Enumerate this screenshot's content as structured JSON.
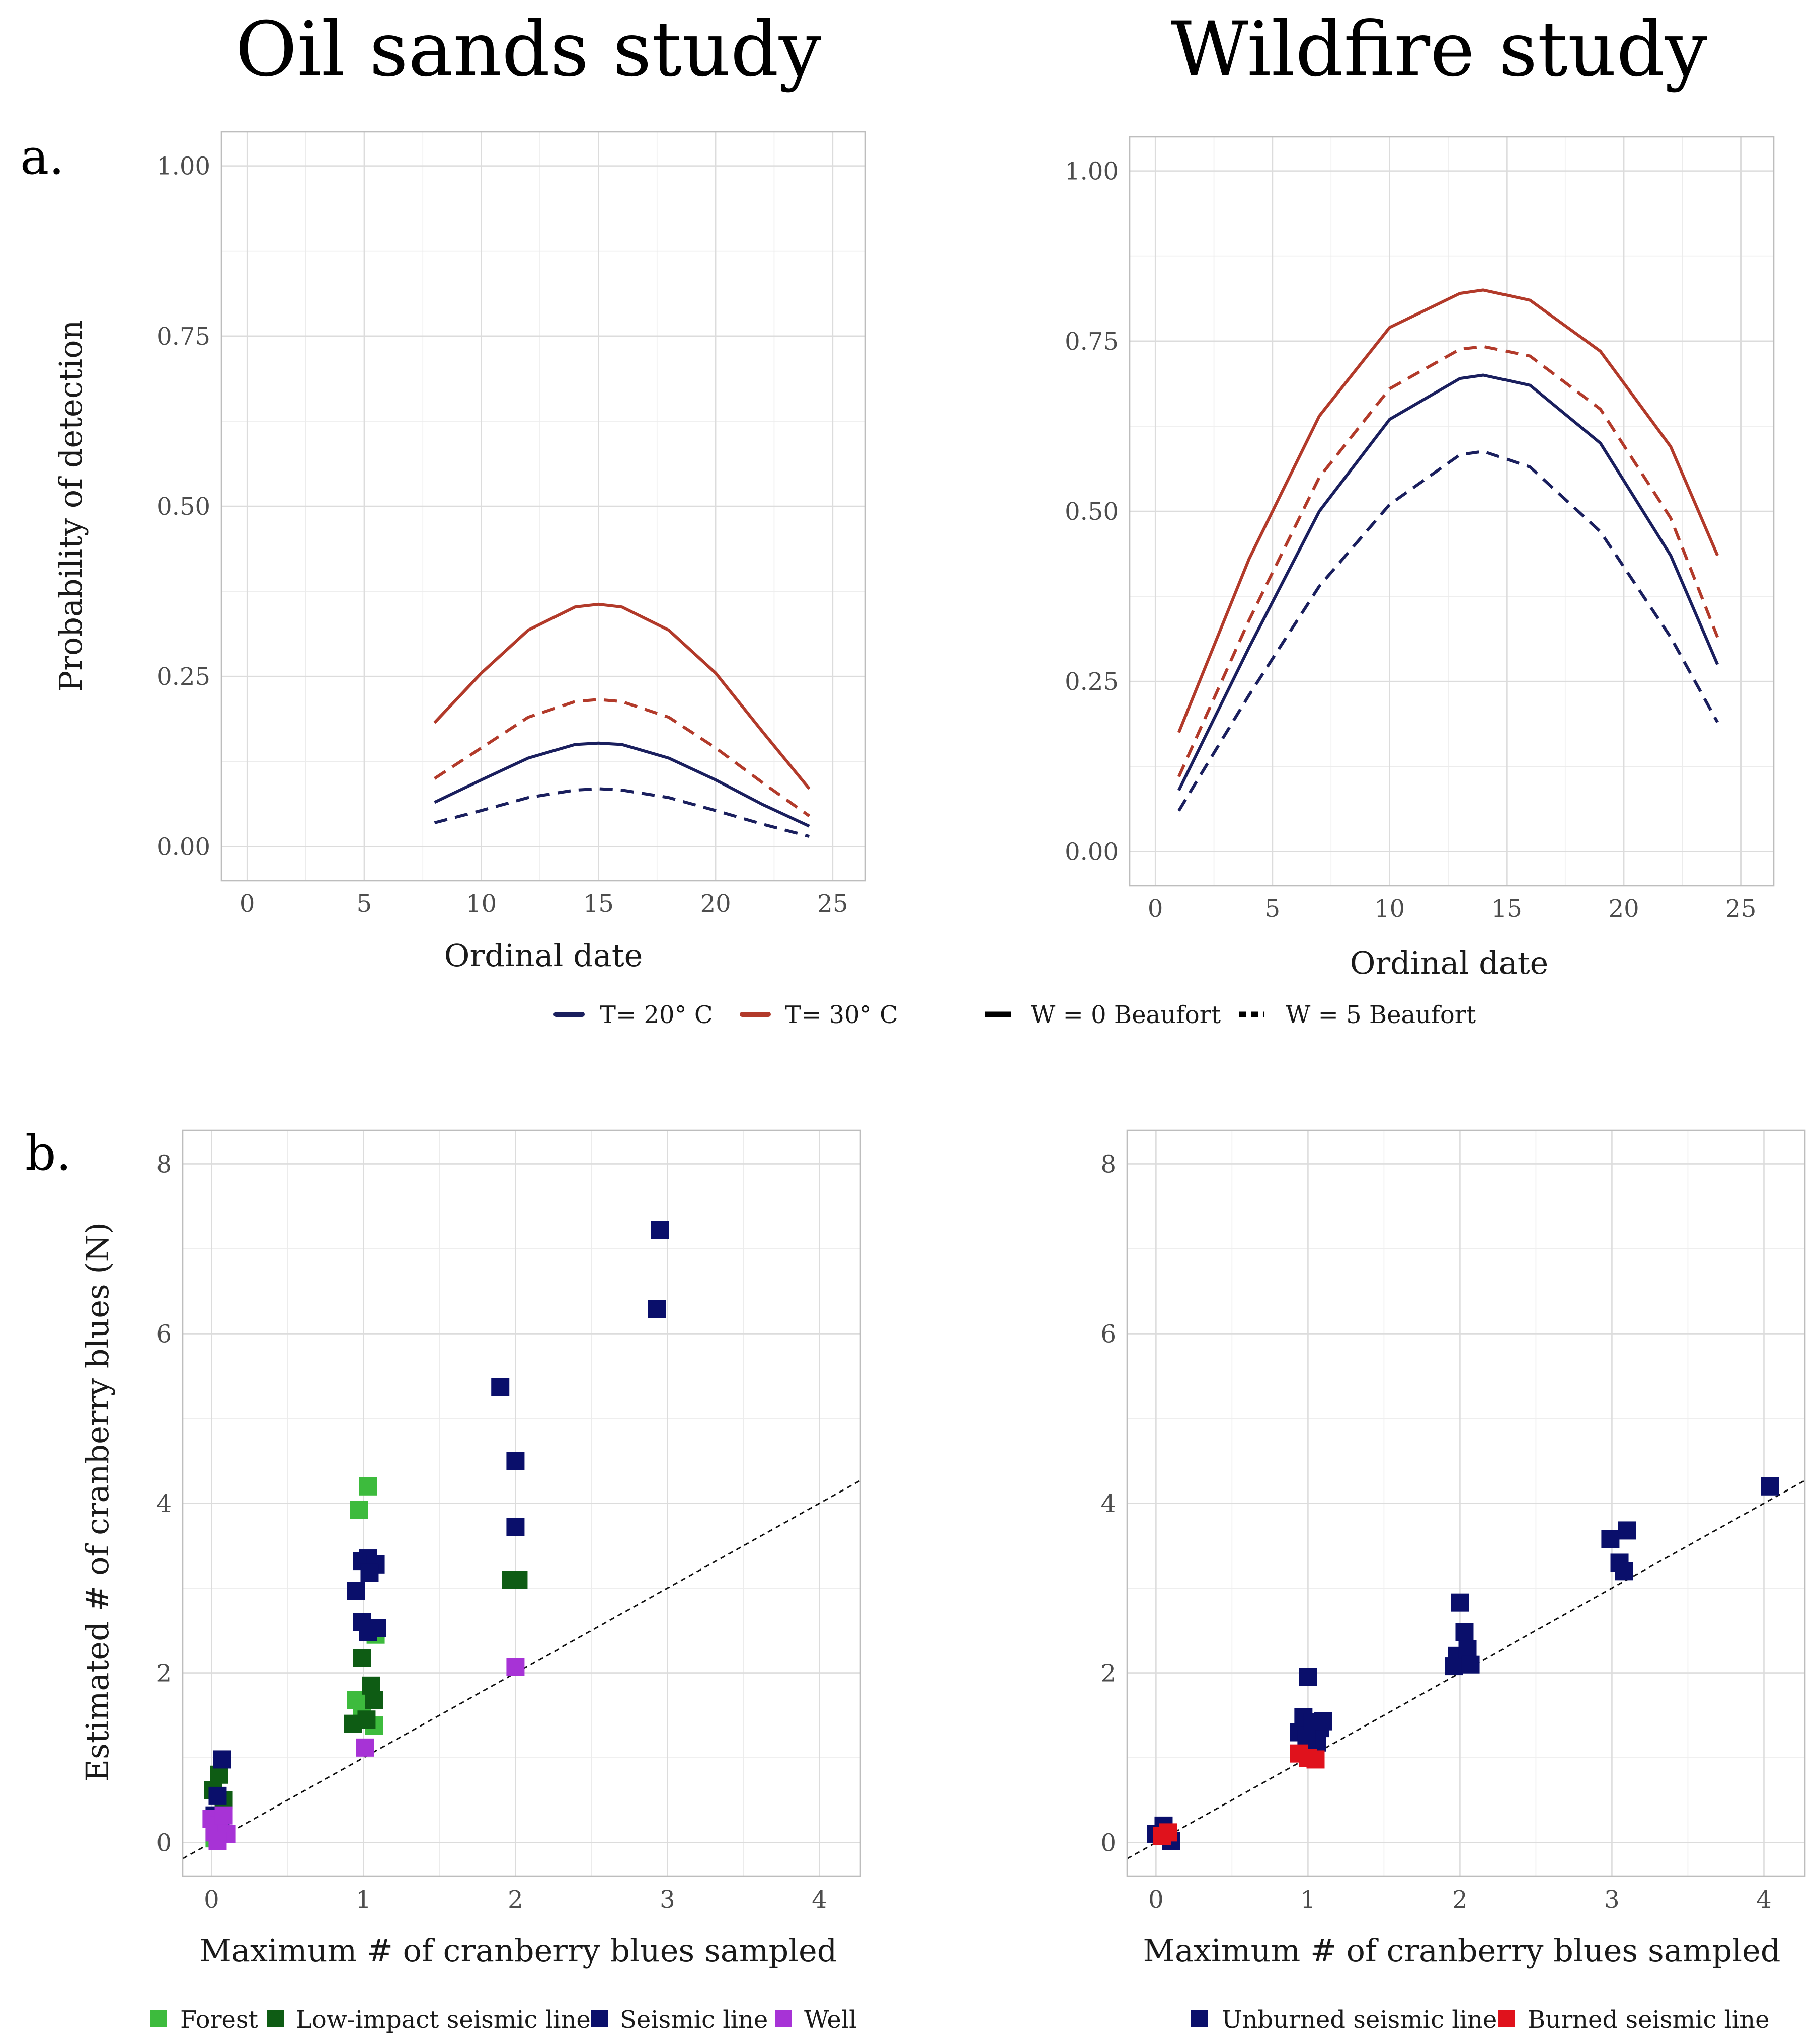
{
  "columns": {
    "oil_sands_title": "Oil sands study",
    "wildfire_title": "Wildfire study"
  },
  "panel_labels": {
    "a": "a.",
    "b": "b."
  },
  "legend_a": {
    "items": [
      {
        "label": "T= 20° C",
        "style": "solid",
        "color": "#1a1f5e"
      },
      {
        "label": "T= 30° C",
        "style": "solid",
        "color": "#b23a2a"
      },
      {
        "label": "W = 0 Beaufort",
        "style": "solid",
        "color": "#000000"
      },
      {
        "label": "W = 5 Beaufort",
        "style": "dashed",
        "color": "#000000"
      }
    ]
  },
  "legend_b_oil": {
    "items": [
      {
        "label": "Forest",
        "color": "#3dbb3d"
      },
      {
        "label": "Low-impact seismic line",
        "color": "#0e5c14"
      },
      {
        "label": "Seismic line",
        "color": "#0a0f6b"
      },
      {
        "label": "Well",
        "color": "#a733d6"
      }
    ]
  },
  "legend_b_fire": {
    "items": [
      {
        "label": "Unburned seismic line",
        "color": "#0a0f6b"
      },
      {
        "label": "Burned seismic line",
        "color": "#e0121c"
      }
    ]
  },
  "chart_data": [
    {
      "id": "a_oil",
      "type": "line",
      "title": "Oil sands study",
      "xlabel": "Ordinal date",
      "ylabel": "Probability of detection",
      "xlim": [
        -1.1,
        26.4
      ],
      "ylim": [
        -0.05,
        1.05
      ],
      "xticks": [
        0,
        5,
        10,
        15,
        20,
        25
      ],
      "yticks": [
        0.0,
        0.25,
        0.5,
        0.75,
        1.0
      ],
      "ytick_labels": [
        "0.00",
        "0.25",
        "0.50",
        "0.75",
        "1.00"
      ],
      "grid": true,
      "x": [
        8,
        10,
        12,
        14,
        15,
        16,
        18,
        20,
        22,
        24
      ],
      "series": [
        {
          "name": "T= 30° C, W = 0 Beaufort",
          "color": "#b23a2a",
          "dashed": false,
          "values": [
            0.182,
            0.255,
            0.318,
            0.352,
            0.356,
            0.352,
            0.318,
            0.255,
            0.169,
            0.085
          ]
        },
        {
          "name": "T= 30° C, W = 5 Beaufort",
          "color": "#b23a2a",
          "dashed": true,
          "values": [
            0.1,
            0.145,
            0.19,
            0.213,
            0.216,
            0.213,
            0.19,
            0.145,
            0.094,
            0.045
          ]
        },
        {
          "name": "T= 20° C, W = 0 Beaufort",
          "color": "#1a1f5e",
          "dashed": false,
          "values": [
            0.065,
            0.098,
            0.13,
            0.15,
            0.152,
            0.15,
            0.13,
            0.098,
            0.062,
            0.03
          ]
        },
        {
          "name": "T= 20° C, W = 5 Beaufort",
          "color": "#1a1f5e",
          "dashed": true,
          "values": [
            0.035,
            0.053,
            0.072,
            0.083,
            0.085,
            0.083,
            0.072,
            0.053,
            0.033,
            0.015
          ]
        }
      ]
    },
    {
      "id": "a_fire",
      "type": "line",
      "title": "Wildfire study",
      "xlabel": "Ordinal date",
      "ylabel": "",
      "xlim": [
        -1.1,
        26.4
      ],
      "ylim": [
        -0.05,
        1.05
      ],
      "xticks": [
        0,
        5,
        10,
        15,
        20,
        25
      ],
      "yticks": [
        0.0,
        0.25,
        0.5,
        0.75,
        1.0
      ],
      "ytick_labels": [
        "0.00",
        "0.25",
        "0.50",
        "0.75",
        "1.00"
      ],
      "grid": true,
      "x": [
        1,
        4,
        7,
        10,
        13,
        14,
        16,
        19,
        22,
        24
      ],
      "series": [
        {
          "name": "T= 30° C, W = 0 Beaufort",
          "color": "#b23a2a",
          "dashed": false,
          "values": [
            0.175,
            0.43,
            0.64,
            0.77,
            0.82,
            0.825,
            0.81,
            0.735,
            0.595,
            0.435
          ]
        },
        {
          "name": "T= 30° C, W = 5 Beaufort",
          "color": "#b23a2a",
          "dashed": true,
          "values": [
            0.11,
            0.34,
            0.55,
            0.68,
            0.738,
            0.742,
            0.728,
            0.65,
            0.49,
            0.315
          ]
        },
        {
          "name": "T= 20° C, W = 0 Beaufort",
          "color": "#1a1f5e",
          "dashed": false,
          "values": [
            0.09,
            0.3,
            0.5,
            0.635,
            0.695,
            0.7,
            0.685,
            0.6,
            0.435,
            0.275
          ]
        },
        {
          "name": "T= 20° C, W = 5 Beaufort",
          "color": "#1a1f5e",
          "dashed": true,
          "values": [
            0.06,
            0.23,
            0.39,
            0.51,
            0.583,
            0.588,
            0.565,
            0.47,
            0.315,
            0.19
          ]
        }
      ]
    },
    {
      "id": "b_oil",
      "type": "scatter",
      "title": "Oil sands study",
      "xlabel": "Maximum # of cranberry blues sampled",
      "ylabel": "Estimated # of cranberry blues (N)",
      "xlim": [
        -0.19,
        4.27
      ],
      "ylim": [
        -0.4,
        8.4
      ],
      "xticks": [
        0,
        1,
        2,
        3,
        4
      ],
      "yticks": [
        0,
        2,
        4,
        6,
        8
      ],
      "ytick_labels": [
        "0",
        "2",
        "4",
        "6",
        "8"
      ],
      "grid": true,
      "reference_line": "y = x",
      "series": [
        {
          "name": "Forest",
          "color": "#3dbb3d",
          "points": [
            [
              0.02,
              0.05
            ],
            [
              0.97,
              3.92
            ],
            [
              1.03,
              4.2
            ],
            [
              0.95,
              1.68
            ],
            [
              1.07,
              1.38
            ],
            [
              1.08,
              2.45
            ],
            [
              0.99,
              1.58
            ]
          ]
        },
        {
          "name": "Low-impact seismic line",
          "color": "#0e5c14",
          "points": [
            [
              0.01,
              0.62
            ],
            [
              0.05,
              0.8
            ],
            [
              0.08,
              0.5
            ],
            [
              0.93,
              1.4
            ],
            [
              1.05,
              1.85
            ],
            [
              1.07,
              1.68
            ],
            [
              0.99,
              2.18
            ],
            [
              1.02,
              1.45
            ],
            [
              1.97,
              3.1
            ],
            [
              2.02,
              3.1
            ]
          ]
        },
        {
          "name": "Seismic line",
          "color": "#0a0f6b",
          "points": [
            [
              0.07,
              0.98
            ],
            [
              0.04,
              0.55
            ],
            [
              0.02,
              0.32
            ],
            [
              0.06,
              0.15
            ],
            [
              0.95,
              2.97
            ],
            [
              0.99,
              3.32
            ],
            [
              1.03,
              3.35
            ],
            [
              1.08,
              3.28
            ],
            [
              1.04,
              3.18
            ],
            [
              0.99,
              2.6
            ],
            [
              1.09,
              2.53
            ],
            [
              1.03,
              2.48
            ],
            [
              1.9,
              5.37
            ],
            [
              2.0,
              4.5
            ],
            [
              2.0,
              3.72
            ],
            [
              2.93,
              6.29
            ],
            [
              2.95,
              7.22
            ]
          ]
        },
        {
          "name": "Well",
          "color": "#a733d6",
          "points": [
            [
              0.0,
              0.28
            ],
            [
              0.02,
              0.12
            ],
            [
              0.05,
              0.2
            ],
            [
              0.08,
              0.32
            ],
            [
              0.1,
              0.1
            ],
            [
              0.04,
              0.02
            ],
            [
              1.01,
              1.12
            ],
            [
              2.0,
              2.07
            ]
          ]
        }
      ]
    },
    {
      "id": "b_fire",
      "type": "scatter",
      "title": "Wildfire study",
      "xlabel": "Maximum # of cranberry blues sampled",
      "ylabel": "",
      "xlim": [
        -0.19,
        4.27
      ],
      "ylim": [
        -0.4,
        8.4
      ],
      "xticks": [
        0,
        1,
        2,
        3,
        4
      ],
      "yticks": [
        0,
        2,
        4,
        6,
        8
      ],
      "ytick_labels": [
        "0",
        "2",
        "4",
        "6",
        "8"
      ],
      "grid": true,
      "reference_line": "y = x",
      "series": [
        {
          "name": "Unburned seismic line",
          "color": "#0a0f6b",
          "points": [
            [
              0.0,
              0.1
            ],
            [
              0.05,
              0.2
            ],
            [
              0.1,
              0.02
            ],
            [
              0.06,
              0.08
            ],
            [
              0.94,
              1.3
            ],
            [
              0.97,
              1.48
            ],
            [
              1.0,
              1.95
            ],
            [
              1.03,
              1.42
            ],
            [
              1.08,
              1.35
            ],
            [
              1.1,
              1.43
            ],
            [
              1.06,
              1.18
            ],
            [
              0.99,
              1.22
            ],
            [
              1.96,
              2.08
            ],
            [
              1.98,
              2.2
            ],
            [
              2.03,
              2.48
            ],
            [
              2.05,
              2.28
            ],
            [
              2.07,
              2.1
            ],
            [
              2.0,
              2.83
            ],
            [
              2.99,
              3.58
            ],
            [
              3.05,
              3.3
            ],
            [
              3.08,
              3.2
            ],
            [
              3.1,
              3.68
            ],
            [
              4.04,
              4.2
            ]
          ]
        },
        {
          "name": "Burned seismic line",
          "color": "#e0121c",
          "points": [
            [
              0.04,
              0.08
            ],
            [
              0.08,
              0.12
            ],
            [
              0.94,
              1.05
            ],
            [
              1.0,
              1.0
            ],
            [
              1.05,
              0.98
            ]
          ]
        }
      ]
    }
  ]
}
